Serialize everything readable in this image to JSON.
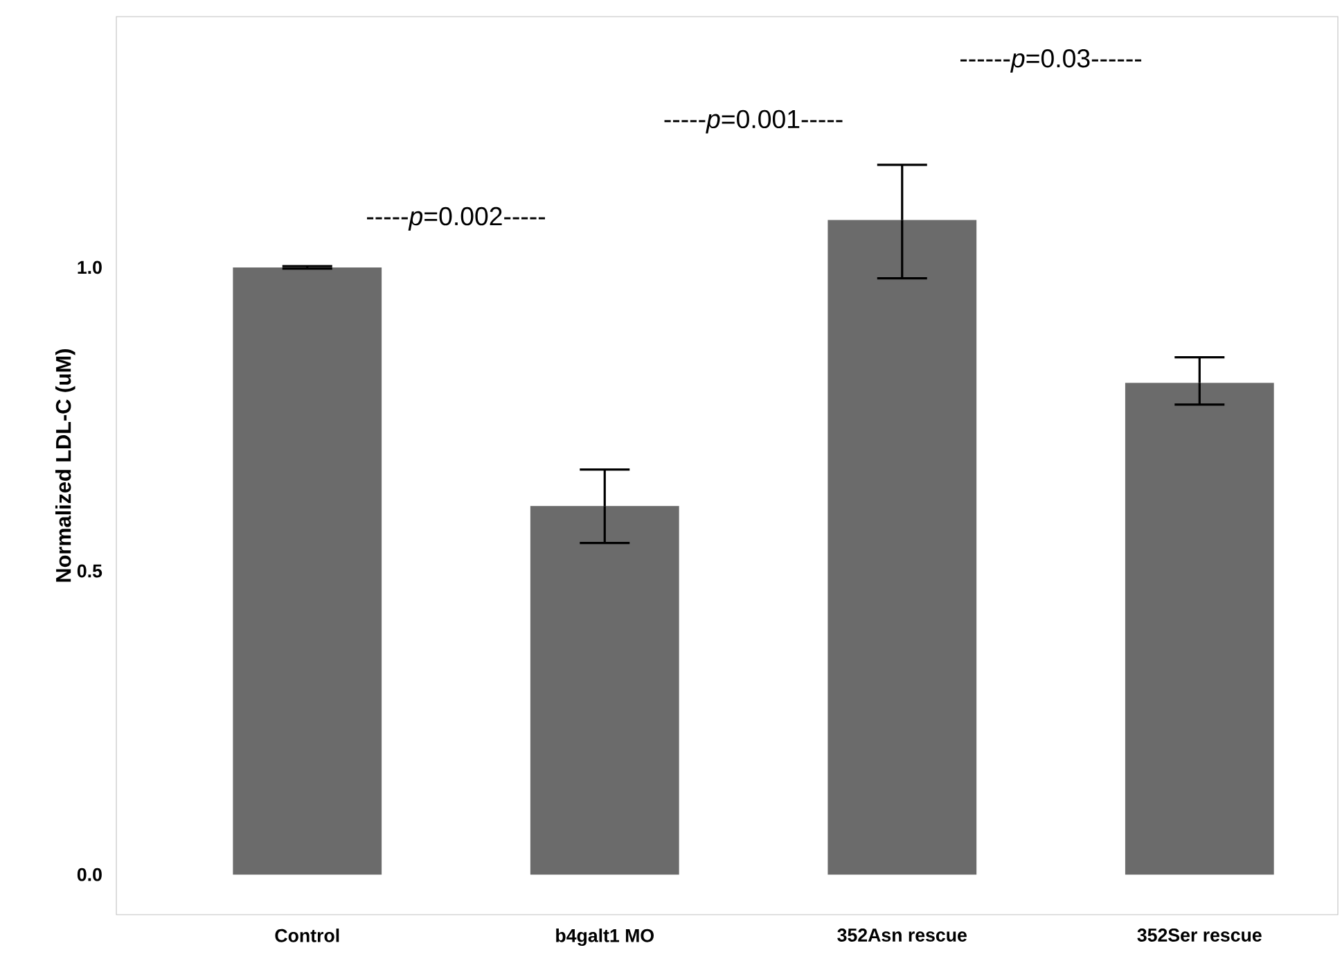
{
  "chart_data": {
    "type": "bar",
    "ylabel": "Normalized LDL-C (uM)",
    "categories": [
      "Control",
      "b4galt1 MO",
      "352Asn rescue",
      "352Ser rescue"
    ],
    "values": [
      1.0,
      0.607,
      1.078,
      0.81
    ],
    "errors": [
      0.002,
      [
        0.546,
        0.667
      ],
      [
        0.982,
        1.169
      ],
      [
        0.774,
        0.852
      ]
    ],
    "color": "#6b6b6b",
    "ylim": [
      -0.066,
      1.413
    ],
    "yticks": [
      {
        "value": 0,
        "label": "0.0"
      },
      {
        "value": 0.5,
        "label": "0.5"
      },
      {
        "value": 1.0,
        "label": "1.0"
      }
    ],
    "grid": false,
    "annotations": [
      "-----*p*=0.002-----",
      "-----*p*=0.001-----",
      "------*p*=0.03------"
    ]
  }
}
